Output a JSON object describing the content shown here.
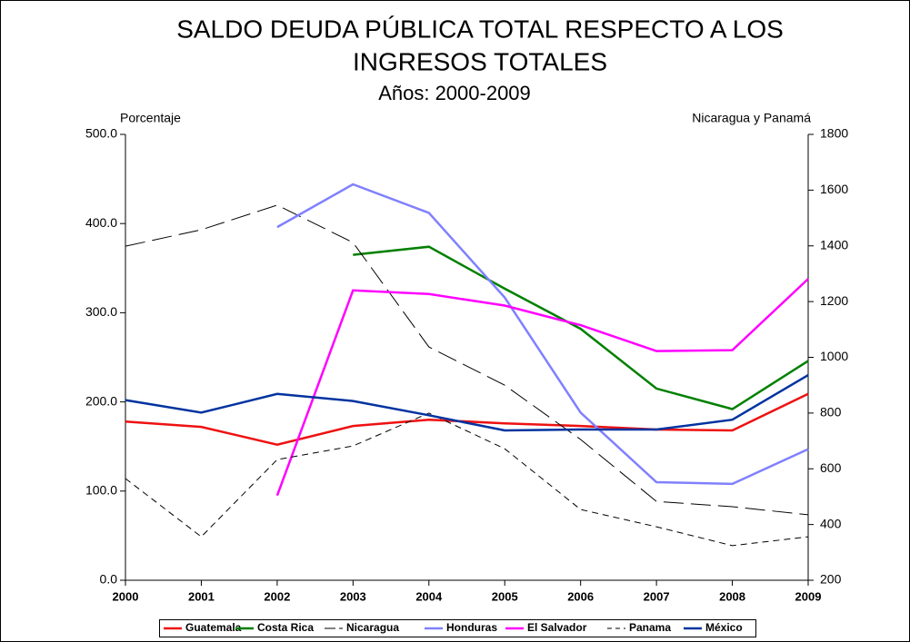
{
  "chart_data": {
    "type": "line",
    "title": [
      "SALDO DEUDA PÚBLICA TOTAL RESPECTO A LOS",
      "INGRESOS TOTALES"
    ],
    "subtitle": "Años: 2000-2009",
    "y_label": "Porcentaje",
    "y2_label": "Nicaragua y Panamá",
    "categories": [
      "2000",
      "2001",
      "2002",
      "2003",
      "2004",
      "2005",
      "2006",
      "2007",
      "2008",
      "2009"
    ],
    "ylim": [
      0,
      500
    ],
    "yticks": [
      {
        "value": 0,
        "label": "0.0"
      },
      {
        "value": 100,
        "label": "100.0"
      },
      {
        "value": 200,
        "label": "200.0"
      },
      {
        "value": 300,
        "label": "300.0"
      },
      {
        "value": 400,
        "label": "400.0"
      },
      {
        "value": 500,
        "label": "500.0"
      }
    ],
    "y2lim": [
      200,
      1800
    ],
    "y2ticks": [
      200,
      400,
      600,
      800,
      1000,
      1200,
      1400,
      1600,
      1800
    ],
    "legend": "bottom",
    "series": [
      {
        "name": "Guatemala",
        "color": "#ee1111",
        "values": [
          178,
          172,
          152,
          173,
          180,
          176,
          173,
          169,
          168,
          209
        ]
      },
      {
        "name": "Costa Rica",
        "color": "#008000",
        "values": [
          null,
          null,
          null,
          365,
          374,
          327,
          282,
          215,
          192,
          246
        ]
      },
      {
        "name": "Nicaragua",
        "color": "#000000",
        "dash": "long",
        "axis": "y2",
        "values": [
          1399,
          1458,
          1546,
          1412,
          1037,
          900,
          705,
          483,
          464,
          435
        ]
      },
      {
        "name": "Honduras",
        "color": "#8080ff",
        "values": [
          null,
          null,
          396,
          444,
          412,
          317,
          188,
          110,
          108,
          147
        ]
      },
      {
        "name": "El Salvador",
        "color": "#ff00ff",
        "values": [
          null,
          null,
          95,
          325,
          321,
          308,
          286,
          257,
          258,
          338
        ]
      },
      {
        "name": "Panama",
        "color": "#000000",
        "dash": "short",
        "axis": "y2",
        "values": [
          565,
          356,
          633,
          682,
          800,
          672,
          454,
          392,
          324,
          356
        ]
      },
      {
        "name": "México",
        "color": "#0033a0",
        "values": [
          202,
          188,
          209,
          201,
          185,
          168,
          169,
          169,
          180,
          230
        ]
      }
    ]
  }
}
